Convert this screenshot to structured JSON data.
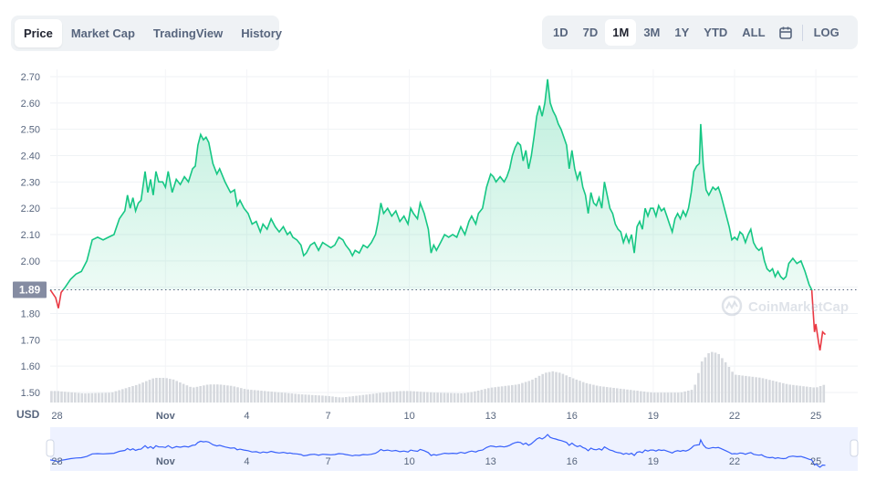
{
  "tabs_left": [
    "Price",
    "Market Cap",
    "TradingView",
    "History"
  ],
  "tabs_left_active": 0,
  "ranges": [
    "1D",
    "7D",
    "1M",
    "3M",
    "1Y",
    "YTD",
    "ALL"
  ],
  "ranges_active": 2,
  "log_label": "LOG",
  "icons": {
    "calendar": "calendar-icon",
    "watermark": "coinmarketcap-logo-icon"
  },
  "watermark_text": "CoinMarketCap",
  "colors": {
    "up": "#16c784",
    "down": "#ea3943",
    "volume": "#d6d9de",
    "navigator": "#3861fb",
    "label_bg": "#858ca2"
  },
  "chart_data": {
    "type": "line",
    "currency_label": "USD",
    "y_ticks": [
      2.7,
      2.6,
      2.5,
      2.4,
      2.3,
      2.2,
      2.1,
      2.0,
      1.9,
      1.8,
      1.7,
      1.6,
      1.5
    ],
    "ylim": [
      1.5,
      2.7
    ],
    "current_price": 1.89,
    "current_price_label": "1.89",
    "x_ticks": [
      {
        "day": 0,
        "label": "28"
      },
      {
        "day": 4,
        "label": "Nov"
      },
      {
        "day": 7,
        "label": "4"
      },
      {
        "day": 10,
        "label": "7"
      },
      {
        "day": 13,
        "label": "10"
      },
      {
        "day": 16,
        "label": "13"
      },
      {
        "day": 19,
        "label": "16"
      },
      {
        "day": 22,
        "label": "19"
      },
      {
        "day": 25,
        "label": "22"
      },
      {
        "day": 28,
        "label": "25"
      }
    ],
    "x_range_days": [
      -0.25,
      29.05
    ],
    "series": [
      {
        "values": [
          [
            -0.25,
            1.89
          ],
          [
            -0.05,
            1.86
          ],
          [
            0.05,
            1.82
          ],
          [
            0.15,
            1.88
          ],
          [
            0.3,
            1.9
          ],
          [
            0.5,
            1.93
          ],
          [
            0.7,
            1.95
          ],
          [
            0.9,
            1.96
          ],
          [
            1.1,
            2.0
          ],
          [
            1.3,
            2.08
          ],
          [
            1.5,
            2.09
          ],
          [
            1.7,
            2.08
          ],
          [
            1.9,
            2.09
          ],
          [
            2.1,
            2.1
          ],
          [
            2.3,
            2.16
          ],
          [
            2.5,
            2.19
          ],
          [
            2.6,
            2.25
          ],
          [
            2.7,
            2.2
          ],
          [
            2.8,
            2.24
          ],
          [
            2.9,
            2.19
          ],
          [
            3.0,
            2.22
          ],
          [
            3.1,
            2.23
          ],
          [
            3.25,
            2.34
          ],
          [
            3.35,
            2.26
          ],
          [
            3.45,
            2.31
          ],
          [
            3.55,
            2.25
          ],
          [
            3.65,
            2.34
          ],
          [
            3.75,
            2.3
          ],
          [
            3.9,
            2.3
          ],
          [
            4.0,
            2.28
          ],
          [
            4.1,
            2.34
          ],
          [
            4.25,
            2.26
          ],
          [
            4.4,
            2.31
          ],
          [
            4.55,
            2.29
          ],
          [
            4.7,
            2.32
          ],
          [
            4.85,
            2.3
          ],
          [
            5.0,
            2.35
          ],
          [
            5.1,
            2.36
          ],
          [
            5.2,
            2.44
          ],
          [
            5.3,
            2.48
          ],
          [
            5.4,
            2.46
          ],
          [
            5.5,
            2.47
          ],
          [
            5.6,
            2.45
          ],
          [
            5.75,
            2.37
          ],
          [
            5.9,
            2.33
          ],
          [
            6.0,
            2.35
          ],
          [
            6.2,
            2.3
          ],
          [
            6.3,
            2.28
          ],
          [
            6.4,
            2.26
          ],
          [
            6.55,
            2.27
          ],
          [
            6.65,
            2.21
          ],
          [
            6.75,
            2.23
          ],
          [
            6.9,
            2.2
          ],
          [
            7.05,
            2.18
          ],
          [
            7.2,
            2.14
          ],
          [
            7.35,
            2.15
          ],
          [
            7.5,
            2.11
          ],
          [
            7.6,
            2.14
          ],
          [
            7.75,
            2.12
          ],
          [
            7.9,
            2.16
          ],
          [
            8.05,
            2.13
          ],
          [
            8.2,
            2.11
          ],
          [
            8.35,
            2.13
          ],
          [
            8.5,
            2.1
          ],
          [
            8.6,
            2.11
          ],
          [
            8.7,
            2.09
          ],
          [
            8.85,
            2.08
          ],
          [
            9.0,
            2.06
          ],
          [
            9.1,
            2.02
          ],
          [
            9.2,
            2.03
          ],
          [
            9.35,
            2.06
          ],
          [
            9.5,
            2.07
          ],
          [
            9.65,
            2.04
          ],
          [
            9.8,
            2.07
          ],
          [
            9.95,
            2.06
          ],
          [
            10.1,
            2.05
          ],
          [
            10.25,
            2.06
          ],
          [
            10.4,
            2.09
          ],
          [
            10.55,
            2.08
          ],
          [
            10.65,
            2.06
          ],
          [
            10.8,
            2.04
          ],
          [
            10.9,
            2.02
          ],
          [
            11.0,
            2.04
          ],
          [
            11.15,
            2.03
          ],
          [
            11.3,
            2.06
          ],
          [
            11.45,
            2.05
          ],
          [
            11.6,
            2.07
          ],
          [
            11.75,
            2.1
          ],
          [
            11.85,
            2.15
          ],
          [
            11.95,
            2.22
          ],
          [
            12.05,
            2.18
          ],
          [
            12.2,
            2.2
          ],
          [
            12.35,
            2.17
          ],
          [
            12.5,
            2.19
          ],
          [
            12.65,
            2.15
          ],
          [
            12.8,
            2.17
          ],
          [
            12.95,
            2.14
          ],
          [
            13.05,
            2.2
          ],
          [
            13.15,
            2.18
          ],
          [
            13.3,
            2.16
          ],
          [
            13.4,
            2.22
          ],
          [
            13.55,
            2.18
          ],
          [
            13.7,
            2.12
          ],
          [
            13.8,
            2.03
          ],
          [
            13.9,
            2.06
          ],
          [
            14.0,
            2.04
          ],
          [
            14.15,
            2.07
          ],
          [
            14.3,
            2.1
          ],
          [
            14.45,
            2.09
          ],
          [
            14.6,
            2.1
          ],
          [
            14.75,
            2.09
          ],
          [
            14.9,
            2.13
          ],
          [
            15.05,
            2.1
          ],
          [
            15.2,
            2.15
          ],
          [
            15.3,
            2.17
          ],
          [
            15.45,
            2.14
          ],
          [
            15.55,
            2.18
          ],
          [
            15.7,
            2.2
          ],
          [
            15.85,
            2.28
          ],
          [
            16.0,
            2.33
          ],
          [
            16.1,
            2.32
          ],
          [
            16.2,
            2.3
          ],
          [
            16.35,
            2.32
          ],
          [
            16.5,
            2.3
          ],
          [
            16.6,
            2.32
          ],
          [
            16.7,
            2.35
          ],
          [
            16.8,
            2.4
          ],
          [
            16.9,
            2.43
          ],
          [
            17.0,
            2.45
          ],
          [
            17.1,
            2.44
          ],
          [
            17.2,
            2.38
          ],
          [
            17.3,
            2.42
          ],
          [
            17.4,
            2.35
          ],
          [
            17.5,
            2.4
          ],
          [
            17.6,
            2.47
          ],
          [
            17.7,
            2.55
          ],
          [
            17.8,
            2.59
          ],
          [
            17.9,
            2.55
          ],
          [
            18.0,
            2.6
          ],
          [
            18.1,
            2.69
          ],
          [
            18.2,
            2.6
          ],
          [
            18.3,
            2.57
          ],
          [
            18.4,
            2.55
          ],
          [
            18.5,
            2.52
          ],
          [
            18.6,
            2.5
          ],
          [
            18.7,
            2.47
          ],
          [
            18.8,
            2.44
          ],
          [
            18.9,
            2.35
          ],
          [
            19.0,
            2.42
          ],
          [
            19.1,
            2.35
          ],
          [
            19.2,
            2.31
          ],
          [
            19.3,
            2.34
          ],
          [
            19.4,
            2.28
          ],
          [
            19.5,
            2.25
          ],
          [
            19.6,
            2.18
          ],
          [
            19.7,
            2.26
          ],
          [
            19.8,
            2.22
          ],
          [
            19.9,
            2.21
          ],
          [
            20.0,
            2.24
          ],
          [
            20.1,
            2.2
          ],
          [
            20.2,
            2.3
          ],
          [
            20.3,
            2.25
          ],
          [
            20.4,
            2.2
          ],
          [
            20.5,
            2.18
          ],
          [
            20.6,
            2.14
          ],
          [
            20.7,
            2.12
          ],
          [
            20.8,
            2.11
          ],
          [
            20.9,
            2.07
          ],
          [
            21.0,
            2.1
          ],
          [
            21.1,
            2.07
          ],
          [
            21.2,
            2.1
          ],
          [
            21.3,
            2.03
          ],
          [
            21.4,
            2.13
          ],
          [
            21.5,
            2.15
          ],
          [
            21.6,
            2.12
          ],
          [
            21.7,
            2.2
          ],
          [
            21.8,
            2.17
          ],
          [
            21.9,
            2.2
          ],
          [
            22.0,
            2.2
          ],
          [
            22.1,
            2.17
          ],
          [
            22.2,
            2.21
          ],
          [
            22.3,
            2.19
          ],
          [
            22.4,
            2.2
          ],
          [
            22.5,
            2.17
          ],
          [
            22.6,
            2.14
          ],
          [
            22.7,
            2.11
          ],
          [
            22.8,
            2.16
          ],
          [
            22.9,
            2.18
          ],
          [
            23.0,
            2.16
          ],
          [
            23.1,
            2.19
          ],
          [
            23.2,
            2.17
          ],
          [
            23.3,
            2.2
          ],
          [
            23.4,
            2.26
          ],
          [
            23.5,
            2.34
          ],
          [
            23.6,
            2.36
          ],
          [
            23.7,
            2.37
          ],
          [
            23.75,
            2.52
          ],
          [
            23.85,
            2.36
          ],
          [
            23.95,
            2.27
          ],
          [
            24.05,
            2.25
          ],
          [
            24.2,
            2.28
          ],
          [
            24.3,
            2.27
          ],
          [
            24.4,
            2.28
          ],
          [
            24.5,
            2.25
          ],
          [
            24.6,
            2.21
          ],
          [
            24.7,
            2.17
          ],
          [
            24.8,
            2.13
          ],
          [
            24.9,
            2.08
          ],
          [
            25.0,
            2.09
          ],
          [
            25.1,
            2.08
          ],
          [
            25.2,
            2.11
          ],
          [
            25.3,
            2.1
          ],
          [
            25.4,
            2.07
          ],
          [
            25.5,
            2.1
          ],
          [
            25.6,
            2.12
          ],
          [
            25.7,
            2.07
          ],
          [
            25.8,
            2.05
          ],
          [
            25.9,
            2.04
          ],
          [
            26.0,
            2.05
          ],
          [
            26.1,
            2.0
          ],
          [
            26.2,
            1.97
          ],
          [
            26.3,
            1.96
          ],
          [
            26.4,
            1.97
          ],
          [
            26.5,
            1.94
          ],
          [
            26.6,
            1.96
          ],
          [
            26.7,
            1.94
          ],
          [
            26.8,
            1.93
          ],
          [
            26.9,
            1.94
          ],
          [
            27.0,
            1.99
          ],
          [
            27.15,
            2.01
          ],
          [
            27.3,
            1.99
          ],
          [
            27.45,
            2.0
          ],
          [
            27.6,
            1.96
          ],
          [
            27.75,
            1.91
          ],
          [
            27.85,
            1.89
          ],
          [
            27.95,
            1.73
          ],
          [
            28.0,
            1.76
          ],
          [
            28.1,
            1.69
          ],
          [
            28.15,
            1.66
          ],
          [
            28.25,
            1.73
          ],
          [
            28.35,
            1.72
          ]
        ]
      }
    ],
    "volume": [
      [
        0,
        14
      ],
      [
        1,
        11
      ],
      [
        2,
        12
      ],
      [
        3,
        22
      ],
      [
        3.6,
        30
      ],
      [
        4,
        30
      ],
      [
        4.3,
        28
      ],
      [
        5,
        18
      ],
      [
        5.6,
        22
      ],
      [
        6,
        22
      ],
      [
        6.5,
        20
      ],
      [
        7,
        16
      ],
      [
        8,
        13
      ],
      [
        9,
        10
      ],
      [
        10,
        8
      ],
      [
        10.5,
        6
      ],
      [
        11,
        8
      ],
      [
        11.5,
        10
      ],
      [
        12,
        12
      ],
      [
        12.7,
        14
      ],
      [
        13,
        14
      ],
      [
        14,
        12
      ],
      [
        15,
        11
      ],
      [
        15.5,
        14
      ],
      [
        16,
        18
      ],
      [
        16.5,
        20
      ],
      [
        17,
        22
      ],
      [
        17.5,
        27
      ],
      [
        18,
        36
      ],
      [
        18.3,
        38
      ],
      [
        18.6,
        36
      ],
      [
        19,
        30
      ],
      [
        19.5,
        24
      ],
      [
        20,
        20
      ],
      [
        21,
        16
      ],
      [
        22,
        12
      ],
      [
        23,
        12
      ],
      [
        23.5,
        16
      ],
      [
        23.8,
        50
      ],
      [
        24.1,
        62
      ],
      [
        24.4,
        60
      ],
      [
        24.7,
        48
      ],
      [
        25,
        34
      ],
      [
        25.5,
        32
      ],
      [
        26,
        30
      ],
      [
        27,
        22
      ],
      [
        27.5,
        20
      ],
      [
        28,
        18
      ],
      [
        28.35,
        22
      ]
    ]
  }
}
